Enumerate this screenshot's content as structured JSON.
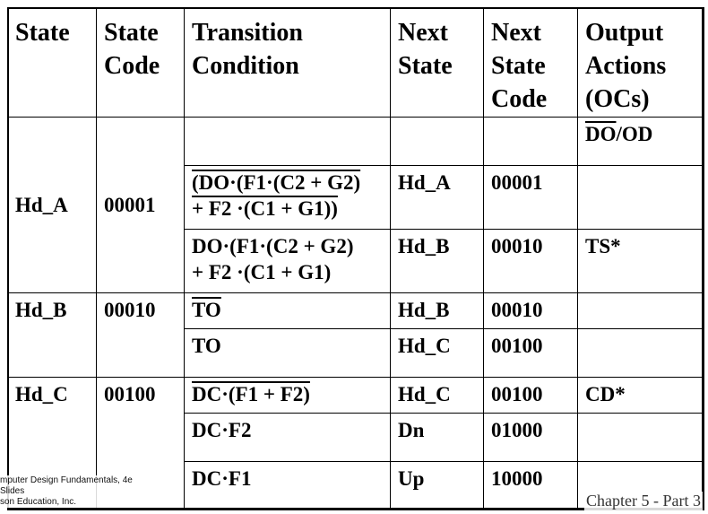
{
  "table": {
    "headers": [
      "State",
      "State Code",
      "Transition Condition",
      "Next State",
      "Next State Code",
      "Output Actions (OCs)"
    ],
    "rows": {
      "r1": {
        "state": "Hd_A",
        "code": "00001",
        "cond": "",
        "next": "",
        "next_code": "",
        "output_ol": "DO",
        "output_rest": "/OD"
      },
      "r2": {
        "cond_ol_1": "(DO·(F1·(C2 + G2)",
        "cond_ol_2": "+ F2 ·(C1 + G1))",
        "next": "Hd_A",
        "next_code": "00001",
        "output": ""
      },
      "r3": {
        "cond_1": "DO·(F1·(C2 + G2)",
        "cond_2": "+ F2 ·(C1 + G1)",
        "next": "Hd_B",
        "next_code": "00010",
        "output": "TS*"
      },
      "r4": {
        "state": "Hd_B",
        "code": "00010",
        "cond_ol": "TO",
        "next": "Hd_B",
        "next_code": "00010",
        "output": ""
      },
      "r5": {
        "cond": "TO",
        "next": "Hd_C",
        "next_code": "00100",
        "output": ""
      },
      "r6": {
        "state": "Hd_C",
        "code": "00100",
        "cond_ol": "DC·(F1 + F2)",
        "next": "Hd_C",
        "next_code": "00100",
        "output": "CD*"
      },
      "r7": {
        "cond": "DC·F2",
        "next": "Dn",
        "next_code": "01000",
        "output": ""
      },
      "r8": {
        "cond": "DC·F1",
        "next": "Up",
        "next_code": "10000",
        "output": ""
      }
    }
  },
  "footer": {
    "left_line1": "mputer Design Fundamentals, 4e",
    "left_line2": "Slides",
    "left_line3": "son Education, Inc.",
    "right": "Chapter 5 - Part 3"
  }
}
